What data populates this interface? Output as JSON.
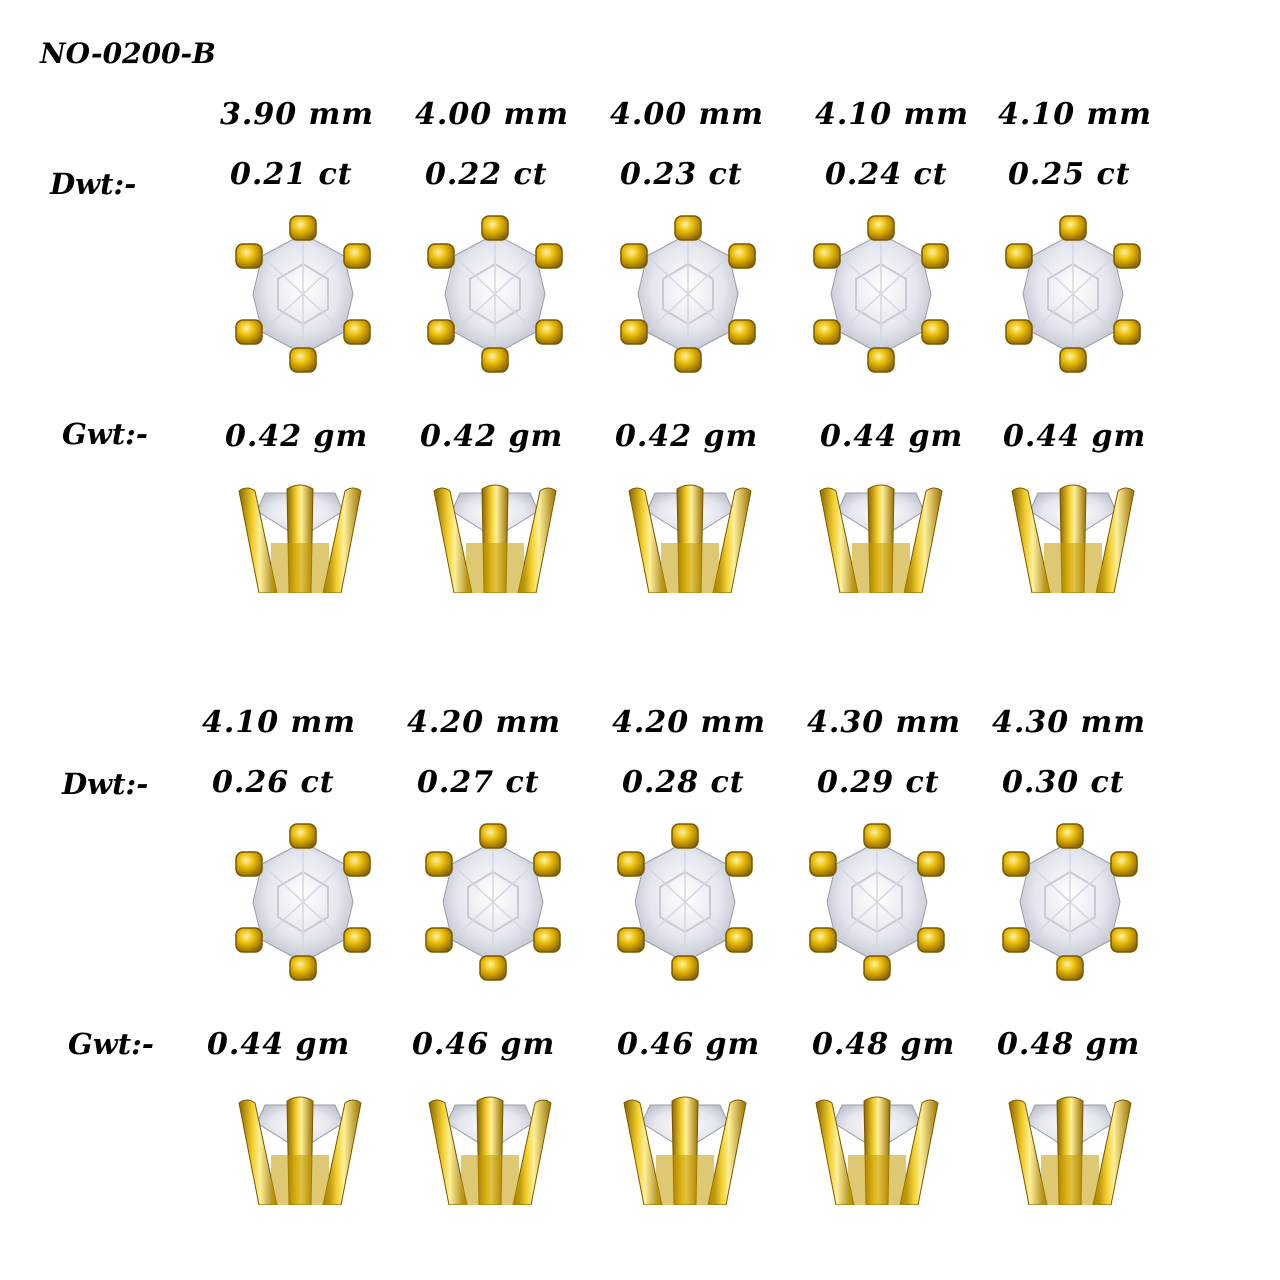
{
  "product_code": "NO-0200-B",
  "labels": {
    "dwt": "Dwt:-",
    "gwt": "Gwt:-"
  },
  "colors": {
    "gold": "#e6b800",
    "gold_dark": "#8a6500",
    "diamond": "#eef0f5"
  },
  "icons": {
    "top_view": "stud-top-view-icon",
    "side_view": "stud-side-view-icon"
  },
  "groups": [
    {
      "items": [
        {
          "size": "3.90 mm",
          "carat": "0.21 ct",
          "gross": "0.42 gm"
        },
        {
          "size": "4.00 mm",
          "carat": "0.22 ct",
          "gross": "0.42 gm"
        },
        {
          "size": "4.00 mm",
          "carat": "0.23 ct",
          "gross": "0.42 gm"
        },
        {
          "size": "4.10 mm",
          "carat": "0.24 ct",
          "gross": "0.44 gm"
        },
        {
          "size": "4.10 mm",
          "carat": "0.25 ct",
          "gross": "0.44 gm"
        }
      ]
    },
    {
      "items": [
        {
          "size": "4.10 mm",
          "carat": "0.26 ct",
          "gross": "0.44 gm"
        },
        {
          "size": "4.20 mm",
          "carat": "0.27 ct",
          "gross": "0.46 gm"
        },
        {
          "size": "4.20 mm",
          "carat": "0.28 ct",
          "gross": "0.46 gm"
        },
        {
          "size": "4.30 mm",
          "carat": "0.29 ct",
          "gross": "0.48 gm"
        },
        {
          "size": "4.30 mm",
          "carat": "0.30 ct",
          "gross": "0.48 gm"
        }
      ]
    }
  ]
}
